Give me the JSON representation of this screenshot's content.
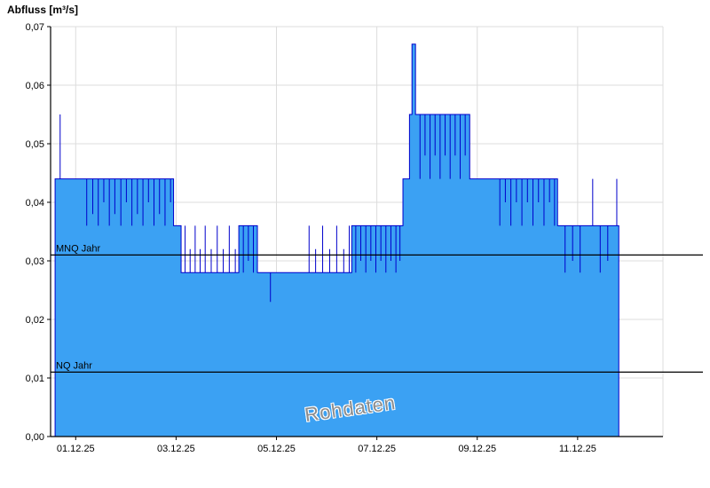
{
  "watermark": {
    "text": "Rohdaten"
  },
  "chart_data": {
    "type": "area",
    "title": "",
    "ylabel": "Abfluss [m³/s]",
    "xlabel": "",
    "legend": "none",
    "grid": true,
    "x_range": [
      0,
      12.2
    ],
    "y_range": [
      0,
      0.07
    ],
    "x_ticks": [
      {
        "v": 0.5,
        "label": "01.12.25"
      },
      {
        "v": 2.5,
        "label": "03.12.25"
      },
      {
        "v": 4.5,
        "label": "05.12.25"
      },
      {
        "v": 6.5,
        "label": "07.12.25"
      },
      {
        "v": 8.5,
        "label": "09.12.25"
      },
      {
        "v": 10.5,
        "label": "11.12.25"
      }
    ],
    "y_ticks": [
      {
        "v": 0.0,
        "label": "0,00"
      },
      {
        "v": 0.01,
        "label": "0,01"
      },
      {
        "v": 0.02,
        "label": "0,02"
      },
      {
        "v": 0.03,
        "label": "0,03"
      },
      {
        "v": 0.04,
        "label": "0,04"
      },
      {
        "v": 0.05,
        "label": "0,05"
      },
      {
        "v": 0.06,
        "label": "0,06"
      },
      {
        "v": 0.07,
        "label": "0,07"
      }
    ],
    "reference_lines": [
      {
        "label": "MNQ Jahr",
        "value": 0.031
      },
      {
        "label": "NQ Jahr",
        "value": 0.011
      }
    ],
    "colors": {
      "fill": "#3BA1F3",
      "line": "#0000CC",
      "grid": "#DCDCDC",
      "axis": "#000000",
      "reference": "#000000",
      "watermark": "#8C8C8C"
    },
    "series": [
      {
        "name": "Rohdaten",
        "points": [
          [
            0.09,
            0.044
          ],
          [
            0.19,
            0.044
          ],
          [
            0.19,
            0.055
          ],
          [
            0.19,
            0.044
          ],
          [
            0.72,
            0.044
          ],
          [
            0.72,
            0.036
          ],
          [
            0.72,
            0.044
          ],
          [
            0.84,
            0.044
          ],
          [
            0.84,
            0.038
          ],
          [
            0.84,
            0.044
          ],
          [
            0.95,
            0.044
          ],
          [
            0.95,
            0.036
          ],
          [
            0.95,
            0.044
          ],
          [
            1.06,
            0.044
          ],
          [
            1.06,
            0.04
          ],
          [
            1.06,
            0.044
          ],
          [
            1.17,
            0.044
          ],
          [
            1.17,
            0.036
          ],
          [
            1.17,
            0.044
          ],
          [
            1.28,
            0.044
          ],
          [
            1.28,
            0.038
          ],
          [
            1.28,
            0.044
          ],
          [
            1.4,
            0.044
          ],
          [
            1.4,
            0.036
          ],
          [
            1.4,
            0.044
          ],
          [
            1.51,
            0.044
          ],
          [
            1.51,
            0.04
          ],
          [
            1.51,
            0.044
          ],
          [
            1.62,
            0.044
          ],
          [
            1.62,
            0.036
          ],
          [
            1.62,
            0.044
          ],
          [
            1.73,
            0.044
          ],
          [
            1.73,
            0.038
          ],
          [
            1.73,
            0.044
          ],
          [
            1.84,
            0.044
          ],
          [
            1.84,
            0.036
          ],
          [
            1.84,
            0.044
          ],
          [
            1.95,
            0.044
          ],
          [
            1.95,
            0.04
          ],
          [
            1.95,
            0.044
          ],
          [
            2.06,
            0.044
          ],
          [
            2.06,
            0.036
          ],
          [
            2.06,
            0.044
          ],
          [
            2.17,
            0.044
          ],
          [
            2.17,
            0.038
          ],
          [
            2.17,
            0.044
          ],
          [
            2.28,
            0.044
          ],
          [
            2.28,
            0.036
          ],
          [
            2.28,
            0.044
          ],
          [
            2.39,
            0.044
          ],
          [
            2.39,
            0.04
          ],
          [
            2.39,
            0.044
          ],
          [
            2.45,
            0.044
          ],
          [
            2.45,
            0.036
          ],
          [
            2.6,
            0.036
          ],
          [
            2.6,
            0.028
          ],
          [
            2.68,
            0.028
          ],
          [
            2.68,
            0.036
          ],
          [
            2.68,
            0.028
          ],
          [
            2.78,
            0.028
          ],
          [
            2.78,
            0.032
          ],
          [
            2.78,
            0.028
          ],
          [
            2.88,
            0.028
          ],
          [
            2.88,
            0.036
          ],
          [
            2.88,
            0.028
          ],
          [
            2.98,
            0.028
          ],
          [
            2.98,
            0.032
          ],
          [
            2.98,
            0.028
          ],
          [
            3.08,
            0.028
          ],
          [
            3.08,
            0.036
          ],
          [
            3.08,
            0.028
          ],
          [
            3.2,
            0.028
          ],
          [
            3.2,
            0.032
          ],
          [
            3.2,
            0.028
          ],
          [
            3.32,
            0.028
          ],
          [
            3.32,
            0.036
          ],
          [
            3.32,
            0.028
          ],
          [
            3.44,
            0.028
          ],
          [
            3.44,
            0.032
          ],
          [
            3.44,
            0.028
          ],
          [
            3.56,
            0.028
          ],
          [
            3.56,
            0.036
          ],
          [
            3.56,
            0.028
          ],
          [
            3.68,
            0.028
          ],
          [
            3.68,
            0.032
          ],
          [
            3.68,
            0.028
          ],
          [
            3.75,
            0.028
          ],
          [
            3.75,
            0.036
          ],
          [
            3.84,
            0.036
          ],
          [
            3.84,
            0.028
          ],
          [
            3.84,
            0.036
          ],
          [
            3.94,
            0.036
          ],
          [
            3.94,
            0.03
          ],
          [
            3.94,
            0.036
          ],
          [
            4.04,
            0.036
          ],
          [
            4.04,
            0.028
          ],
          [
            4.04,
            0.036
          ],
          [
            4.12,
            0.036
          ],
          [
            4.12,
            0.028
          ],
          [
            4.38,
            0.028
          ],
          [
            4.38,
            0.023
          ],
          [
            4.38,
            0.028
          ],
          [
            5.15,
            0.028
          ],
          [
            5.15,
            0.036
          ],
          [
            5.15,
            0.028
          ],
          [
            5.28,
            0.028
          ],
          [
            5.28,
            0.032
          ],
          [
            5.28,
            0.028
          ],
          [
            5.42,
            0.028
          ],
          [
            5.42,
            0.036
          ],
          [
            5.42,
            0.028
          ],
          [
            5.56,
            0.028
          ],
          [
            5.56,
            0.032
          ],
          [
            5.56,
            0.028
          ],
          [
            5.7,
            0.028
          ],
          [
            5.7,
            0.036
          ],
          [
            5.7,
            0.028
          ],
          [
            5.84,
            0.028
          ],
          [
            5.84,
            0.032
          ],
          [
            5.84,
            0.028
          ],
          [
            5.95,
            0.028
          ],
          [
            5.95,
            0.036
          ],
          [
            5.95,
            0.028
          ],
          [
            6.0,
            0.028
          ],
          [
            6.0,
            0.036
          ],
          [
            6.08,
            0.036
          ],
          [
            6.08,
            0.028
          ],
          [
            6.08,
            0.036
          ],
          [
            6.18,
            0.036
          ],
          [
            6.18,
            0.03
          ],
          [
            6.18,
            0.036
          ],
          [
            6.28,
            0.036
          ],
          [
            6.28,
            0.028
          ],
          [
            6.28,
            0.036
          ],
          [
            6.38,
            0.036
          ],
          [
            6.38,
            0.03
          ],
          [
            6.38,
            0.036
          ],
          [
            6.48,
            0.036
          ],
          [
            6.48,
            0.028
          ],
          [
            6.48,
            0.036
          ],
          [
            6.58,
            0.036
          ],
          [
            6.58,
            0.03
          ],
          [
            6.58,
            0.036
          ],
          [
            6.68,
            0.036
          ],
          [
            6.68,
            0.028
          ],
          [
            6.68,
            0.036
          ],
          [
            6.78,
            0.036
          ],
          [
            6.78,
            0.03
          ],
          [
            6.78,
            0.036
          ],
          [
            6.88,
            0.036
          ],
          [
            6.88,
            0.028
          ],
          [
            6.88,
            0.036
          ],
          [
            6.96,
            0.036
          ],
          [
            6.96,
            0.03
          ],
          [
            6.96,
            0.036
          ],
          [
            7.02,
            0.036
          ],
          [
            7.02,
            0.044
          ],
          [
            7.15,
            0.044
          ],
          [
            7.15,
            0.055
          ],
          [
            7.2,
            0.055
          ],
          [
            7.2,
            0.067
          ],
          [
            7.27,
            0.067
          ],
          [
            7.27,
            0.055
          ],
          [
            7.36,
            0.055
          ],
          [
            7.36,
            0.044
          ],
          [
            7.36,
            0.055
          ],
          [
            7.46,
            0.055
          ],
          [
            7.46,
            0.048
          ],
          [
            7.46,
            0.055
          ],
          [
            7.56,
            0.055
          ],
          [
            7.56,
            0.044
          ],
          [
            7.56,
            0.055
          ],
          [
            7.66,
            0.055
          ],
          [
            7.66,
            0.048
          ],
          [
            7.66,
            0.055
          ],
          [
            7.76,
            0.055
          ],
          [
            7.76,
            0.044
          ],
          [
            7.76,
            0.055
          ],
          [
            7.86,
            0.055
          ],
          [
            7.86,
            0.048
          ],
          [
            7.86,
            0.055
          ],
          [
            7.96,
            0.055
          ],
          [
            7.96,
            0.044
          ],
          [
            7.96,
            0.055
          ],
          [
            8.06,
            0.055
          ],
          [
            8.06,
            0.048
          ],
          [
            8.06,
            0.055
          ],
          [
            8.16,
            0.055
          ],
          [
            8.16,
            0.044
          ],
          [
            8.16,
            0.055
          ],
          [
            8.26,
            0.055
          ],
          [
            8.26,
            0.048
          ],
          [
            8.26,
            0.055
          ],
          [
            8.35,
            0.055
          ],
          [
            8.35,
            0.044
          ],
          [
            8.95,
            0.044
          ],
          [
            8.95,
            0.036
          ],
          [
            8.95,
            0.044
          ],
          [
            9.06,
            0.044
          ],
          [
            9.06,
            0.04
          ],
          [
            9.06,
            0.044
          ],
          [
            9.17,
            0.044
          ],
          [
            9.17,
            0.036
          ],
          [
            9.17,
            0.044
          ],
          [
            9.28,
            0.044
          ],
          [
            9.28,
            0.04
          ],
          [
            9.28,
            0.044
          ],
          [
            9.39,
            0.044
          ],
          [
            9.39,
            0.036
          ],
          [
            9.39,
            0.044
          ],
          [
            9.5,
            0.044
          ],
          [
            9.5,
            0.04
          ],
          [
            9.5,
            0.044
          ],
          [
            9.61,
            0.044
          ],
          [
            9.61,
            0.036
          ],
          [
            9.61,
            0.044
          ],
          [
            9.72,
            0.044
          ],
          [
            9.72,
            0.04
          ],
          [
            9.72,
            0.044
          ],
          [
            9.83,
            0.044
          ],
          [
            9.83,
            0.036
          ],
          [
            9.83,
            0.044
          ],
          [
            9.94,
            0.044
          ],
          [
            9.94,
            0.04
          ],
          [
            9.94,
            0.044
          ],
          [
            10.04,
            0.044
          ],
          [
            10.04,
            0.036
          ],
          [
            10.04,
            0.044
          ],
          [
            10.1,
            0.044
          ],
          [
            10.1,
            0.036
          ],
          [
            10.25,
            0.036
          ],
          [
            10.25,
            0.028
          ],
          [
            10.25,
            0.036
          ],
          [
            10.4,
            0.036
          ],
          [
            10.4,
            0.03
          ],
          [
            10.4,
            0.036
          ],
          [
            10.55,
            0.036
          ],
          [
            10.55,
            0.028
          ],
          [
            10.55,
            0.036
          ],
          [
            10.8,
            0.036
          ],
          [
            10.8,
            0.044
          ],
          [
            10.8,
            0.036
          ],
          [
            10.95,
            0.036
          ],
          [
            10.95,
            0.028
          ],
          [
            10.95,
            0.036
          ],
          [
            11.1,
            0.036
          ],
          [
            11.1,
            0.03
          ],
          [
            11.1,
            0.036
          ],
          [
            11.28,
            0.036
          ],
          [
            11.28,
            0.044
          ],
          [
            11.28,
            0.036
          ],
          [
            11.32,
            0.036
          ]
        ]
      }
    ]
  }
}
